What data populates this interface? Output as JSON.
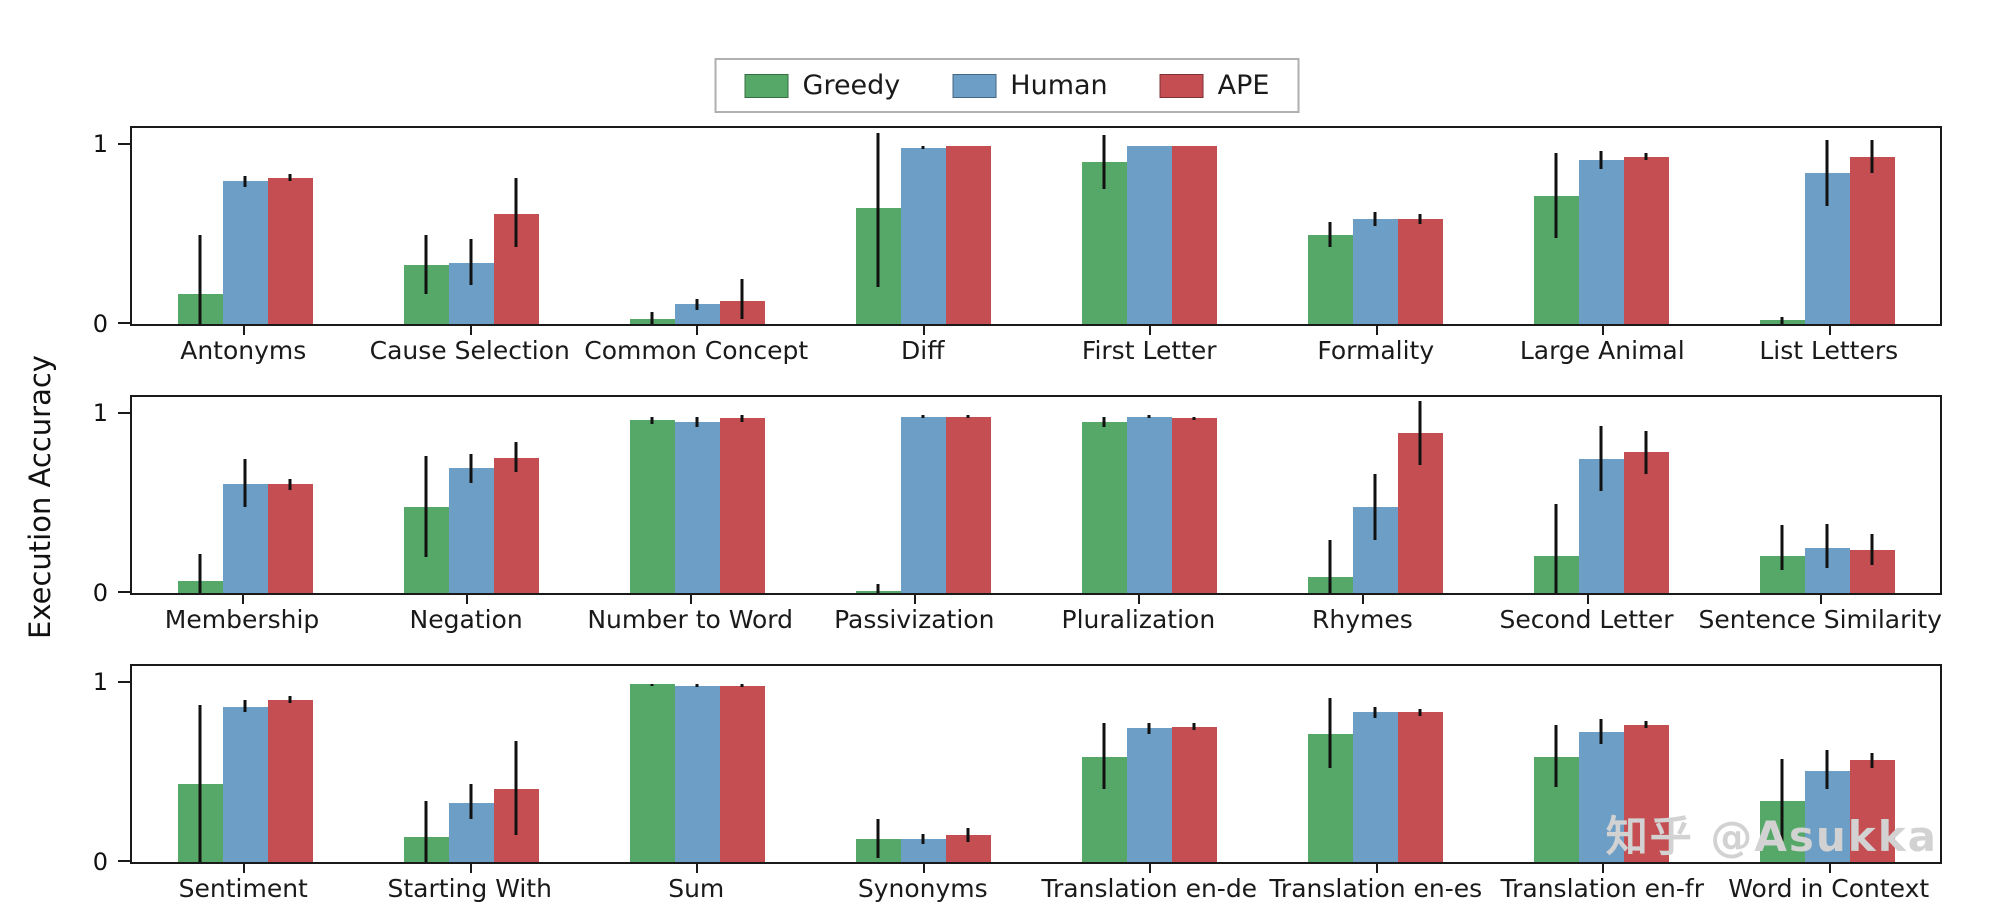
{
  "watermark": {
    "text": "知乎 @Asukka"
  },
  "chart_data": {
    "type": "bar",
    "title": "",
    "xlabel": "",
    "ylabel": "Execution Accuracy",
    "ylim": [
      0,
      1.1
    ],
    "yticks": [
      0,
      1
    ],
    "grid": false,
    "legend_position": "top-center",
    "legend": [
      "Greedy",
      "Human",
      "APE"
    ],
    "colors": {
      "Greedy": "#55a868",
      "Human": "#6d9ec6",
      "APE": "#c44e52"
    },
    "error_bar_color": "#111111",
    "rows": [
      {
        "categories": [
          "Antonyms",
          "Cause Selection",
          "Common Concept",
          "Diff",
          "First Letter",
          "Formality",
          "Large Animal",
          "List Letters"
        ],
        "series": [
          {
            "name": "Greedy",
            "values": [
              0.17,
              0.33,
              0.03,
              0.65,
              0.91,
              0.5,
              0.72,
              0.02
            ],
            "err_lo": [
              0.0,
              0.17,
              0.0,
              0.21,
              0.76,
              0.43,
              0.48,
              0.0
            ],
            "err_hi": [
              0.5,
              0.5,
              0.07,
              1.07,
              1.06,
              0.57,
              0.96,
              0.04
            ]
          },
          {
            "name": "Human",
            "values": [
              0.8,
              0.34,
              0.11,
              0.99,
              1.0,
              0.59,
              0.92,
              0.85
            ],
            "err_lo": [
              0.77,
              0.22,
              0.08,
              0.98,
              1.0,
              0.55,
              0.87,
              0.66
            ],
            "err_hi": [
              0.83,
              0.48,
              0.14,
              1.0,
              1.0,
              0.63,
              0.97,
              1.03
            ]
          },
          {
            "name": "APE",
            "values": [
              0.82,
              0.62,
              0.13,
              1.0,
              1.0,
              0.59,
              0.94,
              0.94
            ],
            "err_lo": [
              0.8,
              0.43,
              0.03,
              1.0,
              1.0,
              0.56,
              0.92,
              0.85
            ],
            "err_hi": [
              0.84,
              0.82,
              0.25,
              1.0,
              1.0,
              0.62,
              0.96,
              1.03
            ]
          }
        ]
      },
      {
        "categories": [
          "Membership",
          "Negation",
          "Number to Word",
          "Passivization",
          "Pluralization",
          "Rhymes",
          "Second Letter",
          "Sentence Similarity"
        ],
        "series": [
          {
            "name": "Greedy",
            "values": [
              0.07,
              0.48,
              0.97,
              0.01,
              0.96,
              0.09,
              0.21,
              0.21
            ],
            "err_lo": [
              0.0,
              0.2,
              0.95,
              0.0,
              0.93,
              0.0,
              0.0,
              0.13
            ],
            "err_hi": [
              0.22,
              0.77,
              0.99,
              0.05,
              0.99,
              0.3,
              0.5,
              0.38
            ]
          },
          {
            "name": "Human",
            "values": [
              0.61,
              0.7,
              0.96,
              0.99,
              0.99,
              0.48,
              0.75,
              0.25
            ],
            "err_lo": [
              0.48,
              0.62,
              0.93,
              0.98,
              0.98,
              0.3,
              0.57,
              0.14
            ],
            "err_hi": [
              0.75,
              0.78,
              0.99,
              1.0,
              1.0,
              0.67,
              0.94,
              0.39
            ]
          },
          {
            "name": "APE",
            "values": [
              0.61,
              0.76,
              0.98,
              0.99,
              0.98,
              0.9,
              0.79,
              0.24
            ],
            "err_lo": [
              0.58,
              0.68,
              0.96,
              0.98,
              0.97,
              0.72,
              0.67,
              0.16
            ],
            "err_hi": [
              0.64,
              0.85,
              1.0,
              1.0,
              0.99,
              1.08,
              0.91,
              0.33
            ]
          }
        ]
      },
      {
        "categories": [
          "Sentiment",
          "Starting With",
          "Sum",
          "Synonyms",
          "Translation en-de",
          "Translation en-es",
          "Translation en-fr",
          "Word in Context"
        ],
        "series": [
          {
            "name": "Greedy",
            "values": [
              0.44,
              0.14,
              1.0,
              0.13,
              0.59,
              0.72,
              0.59,
              0.34
            ],
            "err_lo": [
              0.0,
              0.0,
              0.99,
              0.02,
              0.41,
              0.53,
              0.42,
              0.12
            ],
            "err_hi": [
              0.88,
              0.34,
              1.0,
              0.24,
              0.78,
              0.92,
              0.77,
              0.58
            ]
          },
          {
            "name": "Human",
            "values": [
              0.87,
              0.33,
              0.99,
              0.13,
              0.75,
              0.84,
              0.73,
              0.51
            ],
            "err_lo": [
              0.84,
              0.24,
              0.98,
              0.1,
              0.72,
              0.81,
              0.66,
              0.41
            ],
            "err_hi": [
              0.91,
              0.44,
              1.0,
              0.16,
              0.78,
              0.87,
              0.8,
              0.63
            ]
          },
          {
            "name": "APE",
            "values": [
              0.91,
              0.41,
              0.99,
              0.15,
              0.76,
              0.84,
              0.77,
              0.57
            ],
            "err_lo": [
              0.89,
              0.15,
              0.98,
              0.11,
              0.74,
              0.82,
              0.75,
              0.53
            ],
            "err_hi": [
              0.93,
              0.68,
              1.0,
              0.19,
              0.78,
              0.86,
              0.79,
              0.61
            ]
          }
        ]
      }
    ]
  }
}
